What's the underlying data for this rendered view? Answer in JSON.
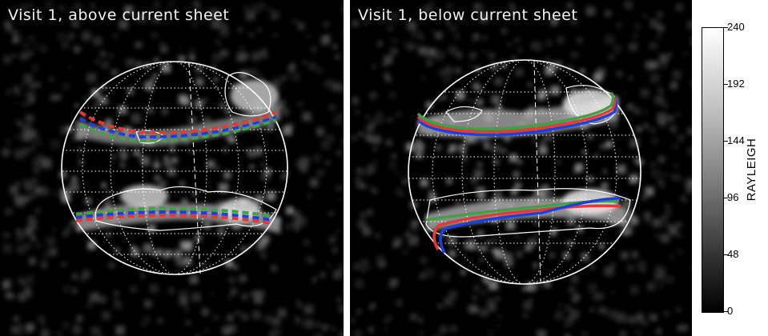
{
  "panels": [
    {
      "title": "Visit 1, above current sheet",
      "line_style": "dashed"
    },
    {
      "title": "Visit 1, below current sheet",
      "line_style": "solid"
    }
  ],
  "colorbar": {
    "title": "RAYLEIGH",
    "ticks": [
      "240",
      "192",
      "144",
      "96",
      "48",
      "0"
    ],
    "range": [
      0,
      240
    ]
  },
  "colors": {
    "background": "#000000",
    "grid": "#ffffff",
    "model_red": "#e53935",
    "model_green": "#43a047",
    "model_blue": "#1e40d8"
  }
}
